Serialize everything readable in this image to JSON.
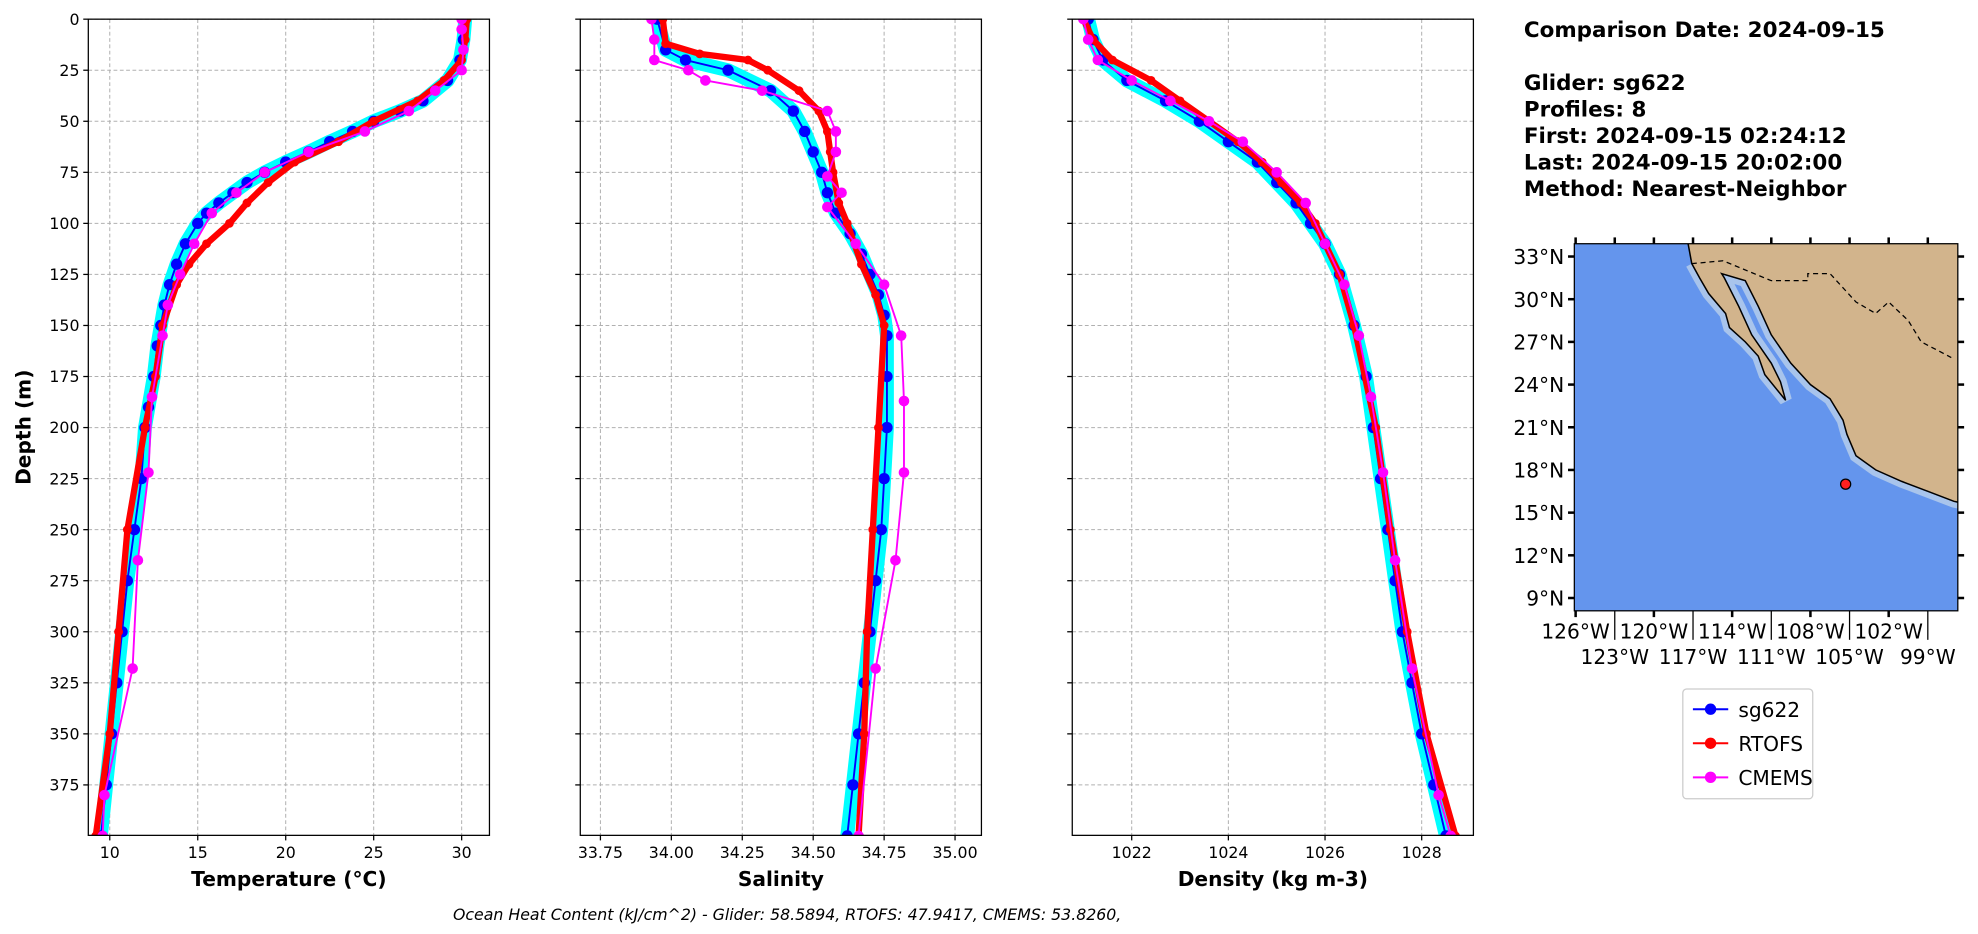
{
  "info": {
    "lines": [
      "Comparison Date: 2024-09-15",
      "",
      "Glider: sg622",
      "Profiles: 8",
      "First: 2024-09-15 02:24:12",
      "Last: 2024-09-15 20:02:00",
      "Method: Nearest-Neighbor"
    ]
  },
  "footer": "Ocean Heat Content (kJ/cm^2) - Glider: 58.5894,  RTOFS: 47.9417,  CMEMS: 53.8260,",
  "legend": [
    {
      "label": "sg622",
      "color": "#0000ff"
    },
    {
      "label": "RTOFS",
      "color": "#ff0000"
    },
    {
      "label": "CMEMS",
      "color": "#ff00ff"
    }
  ],
  "colors": {
    "raw": "#00ffff",
    "grid": "#b0b0b0",
    "ocean": "#6495ed",
    "land": "#d2b48c",
    "shelf": "#a8c4ec"
  },
  "chart_data": [
    {
      "type": "line",
      "xlabel": "Temperature (°C)",
      "ylabel": "Depth (m)",
      "xlim": [
        8.78,
        31.58
      ],
      "ylim": [
        399.7,
        0
      ],
      "xticks": [
        10,
        15,
        20,
        25,
        30
      ],
      "xticklabels": [
        "10",
        "15",
        "20",
        "25",
        "30"
      ],
      "yticks": [
        0,
        25,
        50,
        75,
        100,
        125,
        150,
        175,
        200,
        225,
        250,
        275,
        300,
        325,
        350,
        375
      ],
      "yticklabels": [
        "0",
        "25",
        "50",
        "75",
        "100",
        "125",
        "150",
        "175",
        "200",
        "225",
        "250",
        "275",
        "300",
        "325",
        "350",
        "375"
      ],
      "grid": true,
      "series": [
        {
          "name": "sg622",
          "depth": [
            0,
            10,
            20,
            30,
            40,
            45,
            50,
            55,
            60,
            65,
            70,
            75,
            80,
            85,
            90,
            95,
            100,
            110,
            120,
            130,
            140,
            150,
            160,
            175,
            190,
            200,
            225,
            250,
            275,
            300,
            325,
            350,
            375,
            400
          ],
          "values": [
            30.2,
            30.1,
            29.9,
            29.2,
            27.8,
            26.5,
            25,
            23.8,
            22.5,
            21.3,
            20,
            18.8,
            17.8,
            17,
            16.2,
            15.5,
            15,
            14.3,
            13.8,
            13.4,
            13.1,
            12.9,
            12.7,
            12.5,
            12.2,
            12.0,
            11.8,
            11.4,
            11.0,
            10.7,
            10.4,
            10.1,
            9.8,
            9.5
          ]
        },
        {
          "name": "RTOFS",
          "depth": [
            0,
            10,
            20,
            30,
            40,
            50,
            60,
            70,
            80,
            90,
            100,
            110,
            120,
            130,
            150,
            175,
            200,
            250,
            300,
            350,
            400
          ],
          "values": [
            30.3,
            30.2,
            30.0,
            29.0,
            27.5,
            25.0,
            23.0,
            20.5,
            19.0,
            17.8,
            16.8,
            15.5,
            14.5,
            13.8,
            13.0,
            12.6,
            12.0,
            11.0,
            10.5,
            10.0,
            9.2
          ]
        },
        {
          "name": "CMEMS",
          "depth": [
            0,
            5,
            15,
            25,
            35,
            45,
            55,
            65,
            75,
            85,
            95,
            110,
            125,
            140,
            155,
            185,
            222,
            265,
            318,
            380,
            400
          ],
          "values": [
            30.0,
            30.0,
            30.1,
            30.0,
            28.5,
            27.0,
            24.5,
            21.3,
            18.8,
            17.2,
            15.8,
            14.8,
            14.0,
            13.3,
            13.0,
            12.4,
            12.2,
            11.6,
            11.3,
            9.7,
            9.6
          ]
        }
      ]
    },
    {
      "type": "line",
      "xlabel": "Salinity",
      "xlim": [
        33.679,
        35.093
      ],
      "ylim": [
        399.7,
        0
      ],
      "xticks": [
        33.75,
        34.0,
        34.25,
        34.5,
        34.75,
        35.0
      ],
      "xticklabels": [
        "33.75",
        "34.00",
        "34.25",
        "34.50",
        "34.75",
        "35.00"
      ],
      "yticks": [
        0,
        25,
        50,
        75,
        100,
        125,
        150,
        175,
        200,
        225,
        250,
        275,
        300,
        325,
        350,
        375
      ],
      "grid": true,
      "series": [
        {
          "name": "sg622",
          "depth": [
            0,
            15,
            20,
            25,
            35,
            45,
            55,
            65,
            75,
            85,
            95,
            105,
            115,
            125,
            135,
            145,
            155,
            175,
            200,
            225,
            250,
            275,
            300,
            325,
            350,
            375,
            400
          ],
          "values": [
            33.95,
            33.98,
            34.05,
            34.2,
            34.35,
            34.43,
            34.47,
            34.5,
            34.53,
            34.55,
            34.58,
            34.63,
            34.67,
            34.7,
            34.73,
            34.75,
            34.76,
            34.76,
            34.76,
            34.75,
            34.74,
            34.72,
            34.7,
            34.68,
            34.66,
            34.64,
            34.62
          ]
        },
        {
          "name": "RTOFS",
          "depth": [
            0,
            12,
            17,
            20,
            25,
            35,
            45,
            55,
            65,
            75,
            90,
            100,
            120,
            135,
            150,
            200,
            250,
            300,
            350,
            400
          ],
          "values": [
            33.97,
            33.98,
            34.1,
            34.27,
            34.34,
            34.45,
            34.52,
            34.55,
            34.56,
            34.57,
            34.59,
            34.62,
            34.67,
            34.72,
            34.75,
            34.73,
            34.71,
            34.69,
            34.68,
            34.66
          ]
        },
        {
          "name": "CMEMS",
          "depth": [
            0,
            10,
            20,
            25,
            30,
            35,
            45,
            55,
            65,
            77,
            85,
            92,
            110,
            130,
            155,
            187,
            222,
            265,
            318,
            400
          ],
          "values": [
            33.93,
            33.94,
            33.94,
            34.06,
            34.12,
            34.32,
            34.55,
            34.58,
            34.58,
            34.55,
            34.6,
            34.55,
            34.65,
            34.75,
            34.81,
            34.82,
            34.82,
            34.79,
            34.72,
            34.66
          ]
        }
      ]
    },
    {
      "type": "line",
      "xlabel": "Density (kg m-3)",
      "xlim": [
        1020.77,
        1029.07
      ],
      "ylim": [
        399.7,
        0
      ],
      "xticks": [
        1022,
        1024,
        1026,
        1028
      ],
      "xticklabels": [
        "1022",
        "1024",
        "1026",
        "1028"
      ],
      "yticks": [
        0,
        25,
        50,
        75,
        100,
        125,
        150,
        175,
        200,
        225,
        250,
        275,
        300,
        325,
        350,
        375
      ],
      "grid": true,
      "series": [
        {
          "name": "sg622",
          "depth": [
            0,
            10,
            20,
            30,
            40,
            50,
            60,
            70,
            80,
            90,
            100,
            110,
            125,
            150,
            175,
            200,
            225,
            250,
            275,
            300,
            325,
            350,
            375,
            400
          ],
          "values": [
            1021.1,
            1021.2,
            1021.4,
            1021.9,
            1022.7,
            1023.4,
            1024.0,
            1024.6,
            1025.0,
            1025.4,
            1025.7,
            1026.0,
            1026.3,
            1026.6,
            1026.85,
            1027.0,
            1027.15,
            1027.3,
            1027.45,
            1027.6,
            1027.8,
            1028.0,
            1028.25,
            1028.5
          ]
        },
        {
          "name": "RTOFS",
          "depth": [
            0,
            10,
            20,
            30,
            40,
            50,
            60,
            70,
            80,
            90,
            100,
            125,
            150,
            200,
            250,
            300,
            350,
            400
          ],
          "values": [
            1021.0,
            1021.2,
            1021.6,
            1022.4,
            1023.0,
            1023.6,
            1024.2,
            1024.7,
            1025.1,
            1025.5,
            1025.8,
            1026.3,
            1026.6,
            1027.05,
            1027.35,
            1027.7,
            1028.1,
            1028.7
          ]
        },
        {
          "name": "CMEMS",
          "depth": [
            0,
            10,
            20,
            30,
            40,
            50,
            60,
            75,
            90,
            110,
            130,
            155,
            185,
            222,
            265,
            318,
            380,
            400
          ],
          "values": [
            1021.0,
            1021.1,
            1021.3,
            1022.0,
            1022.8,
            1023.6,
            1024.3,
            1025.0,
            1025.6,
            1026.0,
            1026.4,
            1026.7,
            1026.95,
            1027.2,
            1027.45,
            1027.8,
            1028.35,
            1028.6
          ]
        }
      ]
    },
    {
      "type": "map",
      "lon_range_w": [
        126.1,
        96.7
      ],
      "lat_range_n": [
        8.1,
        33.9
      ],
      "lat_ticks": [
        33,
        30,
        27,
        24,
        21,
        18,
        15,
        12,
        9
      ],
      "lat_ticklabels": [
        "33°N",
        "30°N",
        "27°N",
        "24°N",
        "21°N",
        "18°N",
        "15°N",
        "12°N",
        "9°N"
      ],
      "lon_ticks": [
        126,
        123,
        120,
        117,
        114,
        111,
        108,
        105,
        102,
        99
      ],
      "lon_ticklabels": [
        "126°W",
        "123°W",
        "120°W",
        "117°W",
        "114°W",
        "111°W",
        "108°W",
        "105°W",
        "102°W",
        "99°W"
      ],
      "glider_position": {
        "lon_w": 105.3,
        "lat_n": 17.0
      }
    }
  ]
}
